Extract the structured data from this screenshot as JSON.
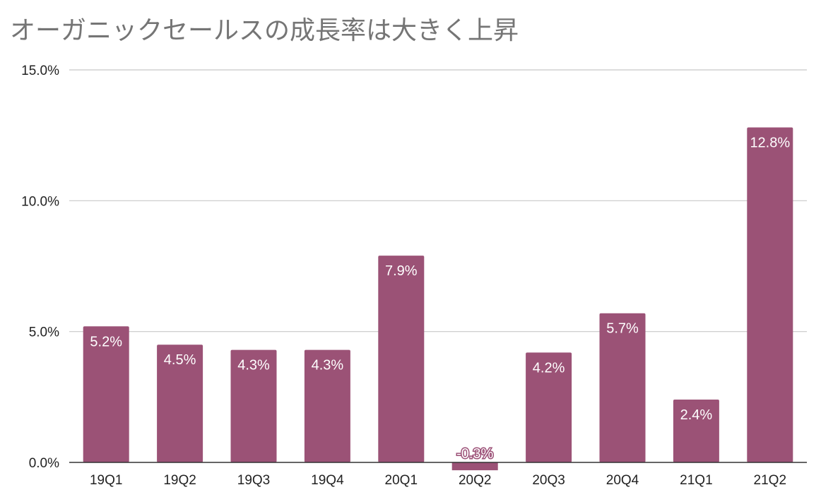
{
  "chart_data": {
    "type": "bar",
    "title": "オーガニックセールスの成長率は大きく上昇",
    "categories": [
      "19Q1",
      "19Q2",
      "19Q3",
      "19Q4",
      "20Q1",
      "20Q2",
      "20Q3",
      "20Q4",
      "21Q1",
      "21Q2"
    ],
    "values": [
      5.2,
      4.5,
      4.3,
      4.3,
      7.9,
      -0.3,
      4.2,
      5.7,
      2.4,
      12.8
    ],
    "data_labels": [
      "5.2%",
      "4.5%",
      "4.3%",
      "4.3%",
      "7.9%",
      "-0.3%",
      "4.2%",
      "5.7%",
      "2.4%",
      "12.8%"
    ],
    "ylim": [
      0,
      15
    ],
    "yticks": [
      0,
      5,
      10,
      15
    ],
    "ytick_labels": [
      "0.0%",
      "5.0%",
      "10.0%",
      "15.0%"
    ],
    "xlabel": "",
    "ylabel": "",
    "grid": true,
    "bar_color": "#9b5276"
  }
}
